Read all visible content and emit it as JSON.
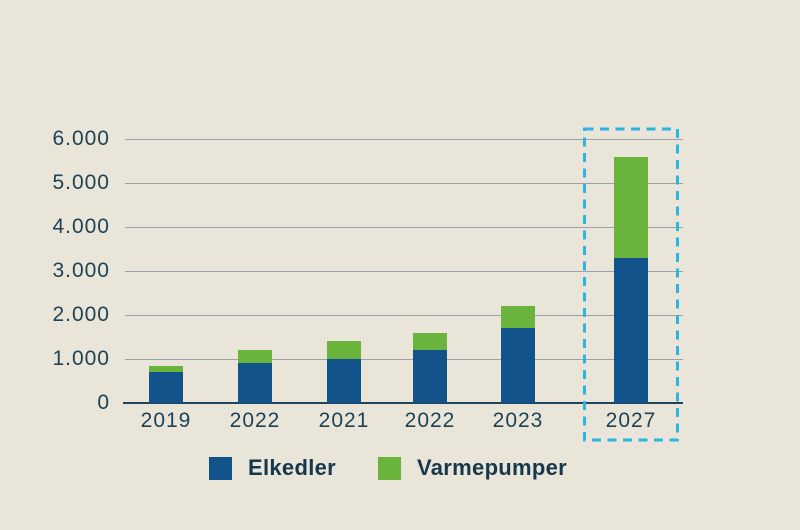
{
  "chart_data": {
    "type": "bar",
    "stacked": true,
    "title": "",
    "xlabel": "",
    "ylabel": "",
    "categories": [
      "2019",
      "2022",
      "2021",
      "2022",
      "2023",
      "2027"
    ],
    "series": [
      {
        "name": "Elkedler",
        "color": "#11538a",
        "values": [
          700,
          900,
          1000,
          1200,
          1700,
          3300
        ]
      },
      {
        "name": "Varmepumper",
        "color": "#6ab33d",
        "values": [
          150,
          300,
          400,
          400,
          500,
          2300
        ]
      }
    ],
    "ylim": [
      0,
      6000
    ],
    "ytick_values": [
      0,
      1000,
      2000,
      3000,
      4000,
      5000,
      6000
    ],
    "ytick_labels": [
      "0",
      "1.000",
      "2.000",
      "3.000",
      "4.000",
      "5.000",
      "6.000"
    ],
    "grid": true,
    "legend_position": "bottom",
    "highlighted_category": "2027",
    "highlight_style": "dashed-box"
  },
  "colors": {
    "background": "#e9e5d9",
    "axis_text": "#1d4355",
    "legend_text": "#16384d",
    "gridline": "#9aa1a8",
    "baseline": "#20455a",
    "highlight_box": "#2ab5e3"
  }
}
